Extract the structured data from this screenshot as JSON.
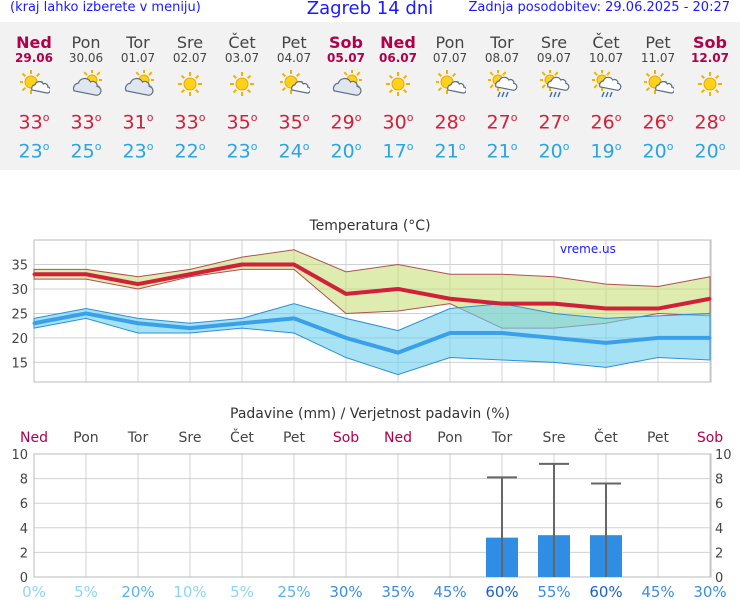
{
  "header": {
    "left_note": "(kraj lahko izberete v meniju)",
    "title": "Zagreb 14 dni",
    "updated": "Zadnja posodobitev: 29.06.2025 - 20:27"
  },
  "colors": {
    "max": "#d0203a",
    "min": "#2aa5e0",
    "weekend": "#b0004a",
    "bar": "#2f8de4"
  },
  "days": [
    {
      "name": "Ned",
      "date": "29.06",
      "icon": "partly-sunny-icon",
      "max": "33",
      "min": "23",
      "weekend": true
    },
    {
      "name": "Pon",
      "date": "30.06",
      "icon": "cloudy-sun-icon",
      "max": "33",
      "min": "25",
      "weekend": false
    },
    {
      "name": "Tor",
      "date": "01.07",
      "icon": "cloudy-sun-icon",
      "max": "31",
      "min": "23",
      "weekend": false
    },
    {
      "name": "Sre",
      "date": "02.07",
      "icon": "sun-icon",
      "max": "33",
      "min": "22",
      "weekend": false
    },
    {
      "name": "Čet",
      "date": "03.07",
      "icon": "sun-icon",
      "max": "35",
      "min": "23",
      "weekend": false
    },
    {
      "name": "Pet",
      "date": "04.07",
      "icon": "partly-sunny-icon",
      "max": "35",
      "min": "24",
      "weekend": false
    },
    {
      "name": "Sob",
      "date": "05.07",
      "icon": "cloudy-sun-icon",
      "max": "29",
      "min": "20",
      "weekend": true
    },
    {
      "name": "Ned",
      "date": "06.07",
      "icon": "sun-icon",
      "max": "30",
      "min": "17",
      "weekend": true
    },
    {
      "name": "Pon",
      "date": "07.07",
      "icon": "partly-sunny-icon",
      "max": "28",
      "min": "21",
      "weekend": false
    },
    {
      "name": "Tor",
      "date": "08.07",
      "icon": "sun-rain-icon",
      "max": "27",
      "min": "21",
      "weekend": false
    },
    {
      "name": "Sre",
      "date": "09.07",
      "icon": "sun-rain-icon",
      "max": "27",
      "min": "20",
      "weekend": false
    },
    {
      "name": "Čet",
      "date": "10.07",
      "icon": "sun-rain-icon",
      "max": "26",
      "min": "19",
      "weekend": false
    },
    {
      "name": "Pet",
      "date": "11.07",
      "icon": "partly-sunny-icon",
      "max": "26",
      "min": "20",
      "weekend": false
    },
    {
      "name": "Sob",
      "date": "12.07",
      "icon": "sun-icon",
      "max": "28",
      "min": "20",
      "weekend": true
    }
  ],
  "chart_data": [
    {
      "type": "line",
      "title": "Temperatura (°C)",
      "watermark": "vreme.us",
      "ylim": [
        11,
        40
      ],
      "yticks": [
        15,
        20,
        25,
        30,
        35
      ],
      "grid": true,
      "series": [
        {
          "name": "max",
          "values": [
            33,
            33,
            31,
            33,
            35,
            35,
            29,
            30,
            28,
            27,
            27,
            26,
            26,
            28
          ],
          "band": [
            [
              32,
              34
            ],
            [
              32,
              34
            ],
            [
              30,
              32.5
            ],
            [
              32.5,
              34
            ],
            [
              34,
              36.5
            ],
            [
              34,
              38
            ],
            [
              25,
              33.5
            ],
            [
              25.5,
              35
            ],
            [
              27,
              33
            ],
            [
              22,
              33
            ],
            [
              22,
              32.5
            ],
            [
              23,
              31
            ],
            [
              25,
              30.5
            ],
            [
              24.5,
              32.5
            ]
          ]
        },
        {
          "name": "min",
          "values": [
            23,
            25,
            23,
            22,
            23,
            24,
            20,
            17,
            21,
            21,
            20,
            19,
            20,
            20
          ],
          "band": [
            [
              22,
              24
            ],
            [
              24,
              26
            ],
            [
              21,
              24
            ],
            [
              21,
              23
            ],
            [
              22,
              24
            ],
            [
              21,
              27
            ],
            [
              16,
              24
            ],
            [
              12.5,
              21.5
            ],
            [
              16,
              26
            ],
            [
              15.5,
              27
            ],
            [
              15,
              25
            ],
            [
              14,
              24
            ],
            [
              16,
              24.5
            ],
            [
              15.5,
              25
            ]
          ]
        }
      ]
    },
    {
      "type": "bar",
      "title": "Padavine (mm) / Verjetnost padavin (%)",
      "categories": [
        "Ned",
        "Pon",
        "Tor",
        "Sre",
        "Čet",
        "Pet",
        "Sob",
        "Ned",
        "Pon",
        "Tor",
        "Sre",
        "Čet",
        "Pet",
        "Sob"
      ],
      "weekend": [
        true,
        false,
        false,
        false,
        false,
        false,
        true,
        true,
        false,
        false,
        false,
        false,
        false,
        true
      ],
      "values": [
        0,
        0,
        0,
        0,
        0,
        0,
        0,
        0,
        0,
        3.2,
        3.4,
        3.4,
        0,
        0
      ],
      "errors": [
        0,
        0,
        0,
        0,
        0,
        0,
        0,
        0,
        0,
        8.1,
        9.2,
        7.6,
        0,
        0
      ],
      "probability": [
        "0%",
        "5%",
        "20%",
        "10%",
        "5%",
        "25%",
        "30%",
        "35%",
        "45%",
        "60%",
        "55%",
        "60%",
        "45%",
        "30%"
      ],
      "ylim": [
        0,
        10
      ],
      "yticks": [
        0,
        2,
        4,
        6,
        8,
        10
      ]
    }
  ]
}
